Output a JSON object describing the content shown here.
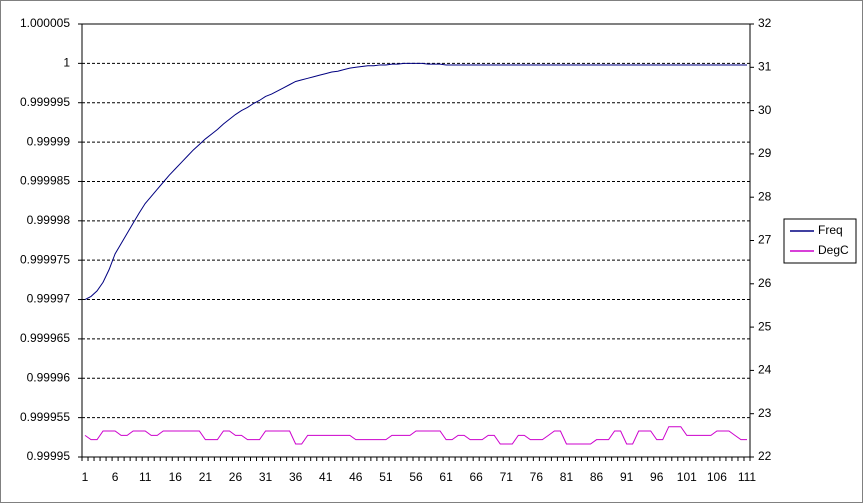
{
  "chart_data": {
    "type": "line",
    "categories": [
      1,
      null,
      null,
      null,
      null,
      6,
      null,
      null,
      null,
      null,
      11,
      null,
      null,
      null,
      null,
      16,
      null,
      null,
      null,
      null,
      21,
      null,
      null,
      null,
      null,
      26,
      null,
      null,
      null,
      null,
      31,
      null,
      null,
      null,
      null,
      36,
      null,
      null,
      null,
      null,
      41,
      null,
      null,
      null,
      null,
      46,
      null,
      null,
      null,
      null,
      51,
      null,
      null,
      null,
      null,
      56,
      null,
      null,
      null,
      null,
      61,
      null,
      null,
      null,
      null,
      66,
      null,
      null,
      null,
      null,
      71,
      null,
      null,
      null,
      null,
      76,
      null,
      null,
      null,
      null,
      81,
      null,
      null,
      null,
      null,
      86,
      null,
      null,
      null,
      null,
      91,
      null,
      null,
      null,
      null,
      96,
      null,
      null,
      null,
      null,
      101,
      null,
      null,
      null,
      null,
      106,
      null,
      null,
      null,
      null,
      111
    ],
    "series": [
      {
        "name": "Freq",
        "color": "#000080",
        "axis": "y",
        "values": [
          0.99997,
          0.9999704,
          0.9999711,
          0.9999722,
          0.9999738,
          0.9999758,
          0.9999771,
          0.9999784,
          0.9999797,
          0.999981,
          0.9999822,
          0.9999831,
          0.999984,
          0.9999849,
          0.9999858,
          0.9999866,
          0.9999874,
          0.9999882,
          0.999989,
          0.9999897,
          0.9999904,
          0.999991,
          0.9999916,
          0.9999923,
          0.9999929,
          0.9999935,
          0.999994,
          0.9999944,
          0.9999949,
          0.9999953,
          0.9999958,
          0.9999961,
          0.9999965,
          0.9999969,
          0.9999973,
          0.9999977,
          0.9999979,
          0.9999981,
          0.9999983,
          0.9999985,
          0.9999987,
          0.9999989,
          0.999999,
          0.9999992,
          0.9999994,
          0.9999995,
          0.9999996,
          0.9999997,
          0.9999997,
          0.9999998,
          0.9999998,
          0.9999999,
          0.9999999,
          1,
          1,
          1,
          1,
          0.9999999,
          0.9999999,
          0.9999999,
          0.9999998,
          0.9999998,
          0.9999998,
          0.9999998,
          0.9999998,
          0.9999998,
          0.9999998,
          0.9999998,
          0.9999998,
          0.9999998,
          0.9999998,
          0.9999998,
          0.9999998,
          0.9999998,
          0.9999998,
          0.9999998,
          0.9999998,
          0.9999998,
          0.9999998,
          0.9999998,
          0.9999998,
          0.9999998,
          0.9999998,
          0.9999998,
          0.9999998,
          0.9999998,
          0.9999998,
          0.9999998,
          0.9999998,
          0.9999998,
          0.9999998,
          0.9999998,
          0.9999998,
          0.9999998,
          0.9999998,
          0.9999998,
          0.9999998,
          0.9999998,
          0.9999998,
          0.9999998,
          0.9999998,
          0.9999998,
          0.9999998,
          0.9999998,
          0.9999998,
          0.9999998,
          0.9999998,
          0.9999998,
          0.9999998,
          0.9999998,
          0.9999998
        ]
      },
      {
        "name": "DegC",
        "color": "#cc00cc",
        "axis": "y2",
        "values": [
          22.5,
          22.4,
          22.4,
          22.6,
          22.6,
          22.6,
          22.5,
          22.5,
          22.6,
          22.6,
          22.6,
          22.5,
          22.5,
          22.6,
          22.6,
          22.6,
          22.6,
          22.6,
          22.6,
          22.6,
          22.4,
          22.4,
          22.4,
          22.6,
          22.6,
          22.5,
          22.5,
          22.4,
          22.4,
          22.4,
          22.6,
          22.6,
          22.6,
          22.6,
          22.6,
          22.3,
          22.3,
          22.5,
          22.5,
          22.5,
          22.5,
          22.5,
          22.5,
          22.5,
          22.5,
          22.4,
          22.4,
          22.4,
          22.4,
          22.4,
          22.4,
          22.5,
          22.5,
          22.5,
          22.5,
          22.6,
          22.6,
          22.6,
          22.6,
          22.6,
          22.4,
          22.4,
          22.5,
          22.5,
          22.4,
          22.4,
          22.4,
          22.5,
          22.5,
          22.3,
          22.3,
          22.3,
          22.5,
          22.5,
          22.4,
          22.4,
          22.4,
          22.5,
          22.6,
          22.6,
          22.3,
          22.3,
          22.3,
          22.3,
          22.3,
          22.4,
          22.4,
          22.4,
          22.6,
          22.6,
          22.3,
          22.3,
          22.6,
          22.6,
          22.6,
          22.4,
          22.4,
          22.7,
          22.7,
          22.7,
          22.5,
          22.5,
          22.5,
          22.5,
          22.5,
          22.6,
          22.6,
          22.6,
          22.5,
          22.4,
          22.4
        ]
      }
    ],
    "ylim": [
      0.99995,
      1.000005
    ],
    "yticks": [
      0.99995,
      0.999955,
      0.99996,
      0.999965,
      0.99997,
      0.999975,
      0.99998,
      0.999985,
      0.99999,
      0.999995,
      1,
      1.000005
    ],
    "y2lim": [
      22,
      32
    ],
    "y2ticks": [
      22,
      23,
      24,
      25,
      26,
      27,
      28,
      29,
      30,
      31,
      32
    ],
    "grid": true,
    "legend": "right"
  }
}
